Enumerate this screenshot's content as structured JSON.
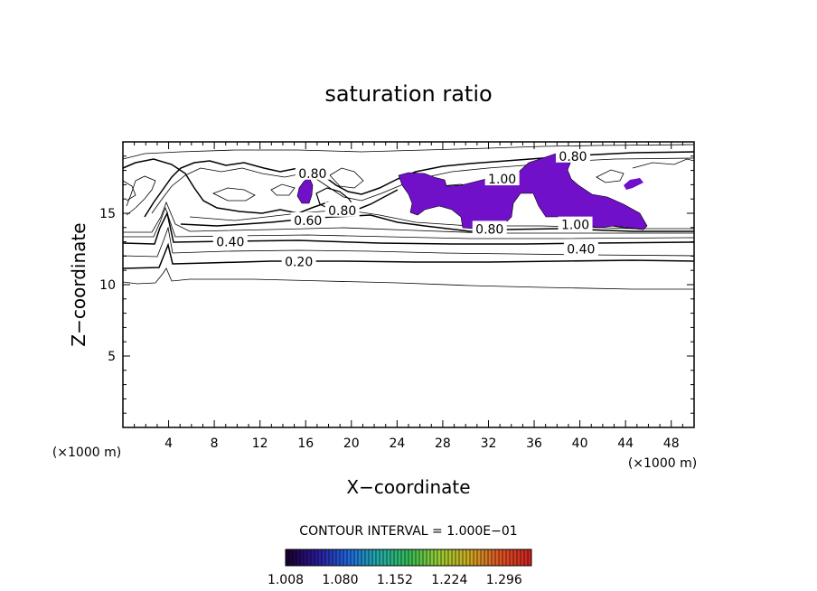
{
  "chart_data": {
    "type": "contour",
    "title": "saturation ratio",
    "xlabel": "X−coordinate",
    "ylabel": "Z−coordinate",
    "x_unit_label": "(×1000 m)",
    "y_unit_label": "(×1000 m)",
    "xlim": [
      0,
      50
    ],
    "ylim": [
      0,
      20
    ],
    "x_ticks": [
      4,
      8,
      12,
      16,
      20,
      24,
      28,
      32,
      36,
      40,
      44,
      48
    ],
    "y_ticks": [
      5,
      10,
      15
    ],
    "contour_interval_text": "CONTOUR INTERVAL = 1.000E−01",
    "contour_labels": [
      {
        "text": "0.20",
        "x": 15.4,
        "z": 11.6
      },
      {
        "text": "0.40",
        "x": 9.4,
        "z": 13.0
      },
      {
        "text": "0.40",
        "x": 40.1,
        "z": 12.5
      },
      {
        "text": "0.60",
        "x": 16.2,
        "z": 14.5
      },
      {
        "text": "0.80",
        "x": 32.1,
        "z": 13.9
      },
      {
        "text": "0.80",
        "x": 39.4,
        "z": 19.0
      },
      {
        "text": "0.80",
        "x": 19.2,
        "z": 15.2
      },
      {
        "text": "0.80",
        "x": 16.6,
        "z": 17.8
      },
      {
        "text": "1.00",
        "x": 33.2,
        "z": 17.4
      },
      {
        "text": "1.00",
        "x": 39.6,
        "z": 14.2
      }
    ],
    "colorbar": {
      "tick_labels": [
        "1.008",
        "1.080",
        "1.152",
        "1.224",
        "1.296"
      ],
      "range": [
        1.008,
        1.332
      ],
      "colors": [
        "#1a0033",
        "#2a1a99",
        "#1f66dd",
        "#22aaaa",
        "#33bb55",
        "#99cc33",
        "#ccaa22",
        "#dd5522",
        "#cc2222"
      ]
    },
    "fill_color": "#7010c8"
  }
}
